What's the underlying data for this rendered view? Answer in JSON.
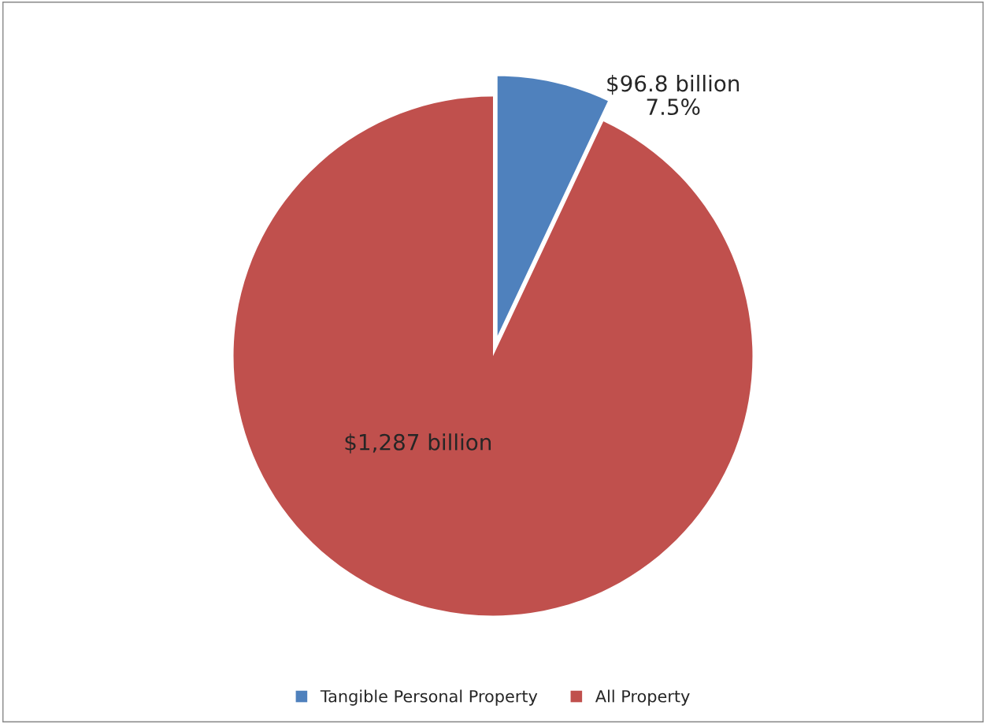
{
  "chart_data": {
    "type": "pie",
    "categories": [
      "Tangible Personal Property",
      "All Property"
    ],
    "values": [
      96.8,
      1287
    ],
    "colors": [
      "#4f81bd",
      "#c0504d"
    ],
    "value_labels": [
      "$96.8 billion",
      "$1,287 billion"
    ],
    "annotations": [
      "7.5%"
    ],
    "legend": "bottom"
  }
}
